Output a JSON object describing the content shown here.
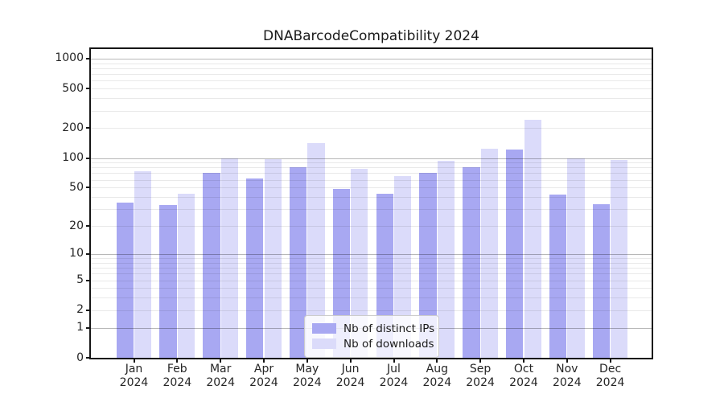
{
  "title": "DNABarcodeCompatibility 2024",
  "chart_data": {
    "type": "bar",
    "title": "DNABarcodeCompatibility 2024",
    "categories": [
      "Jan 2024",
      "Feb 2024",
      "Mar 2024",
      "Apr 2024",
      "May 2024",
      "Jun 2024",
      "Jul 2024",
      "Aug 2024",
      "Sep 2024",
      "Oct 2024",
      "Nov 2024",
      "Dec 2024"
    ],
    "series": [
      {
        "name": "Nb of distinct IPs",
        "color": "#a8a8f2",
        "values": [
          35,
          33,
          70,
          62,
          80,
          48,
          43,
          70,
          80,
          121,
          42,
          34
        ]
      },
      {
        "name": "Nb of downloads",
        "color": "#dbdbfa",
        "values": [
          73,
          43,
          100,
          97,
          142,
          77,
          65,
          93,
          124,
          242,
          100,
          95
        ]
      }
    ],
    "xlabel": "",
    "ylabel": "",
    "yscale": "log1p",
    "ylim": [
      0,
      1250
    ],
    "y_ticks": [
      0,
      1,
      2,
      5,
      10,
      20,
      50,
      100,
      200,
      500,
      1000
    ],
    "grid": true,
    "legend_position": "lower center"
  },
  "colors": {
    "grid_major": "rgba(0,0,0,0.28)",
    "grid_minor": "rgba(0,0,0,0.085)",
    "spine": "#161616",
    "text": "#262626"
  }
}
